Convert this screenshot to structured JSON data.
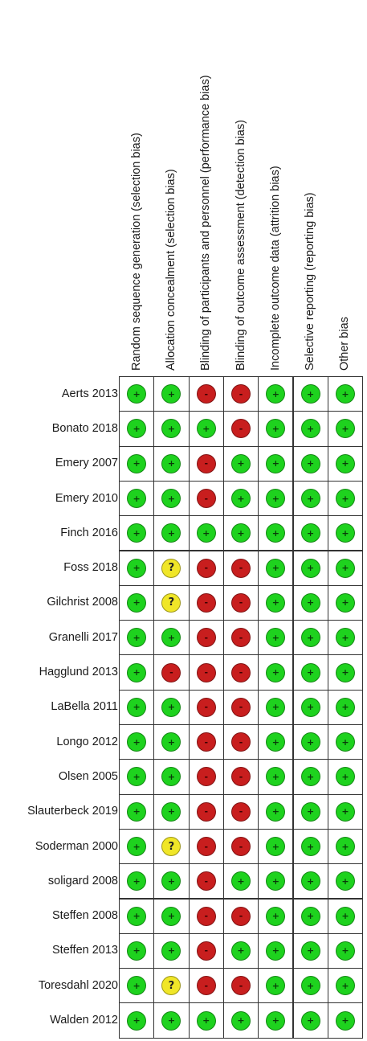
{
  "columns": [
    "Random sequence generation (selection bias)",
    "Allocation concealment (selection bias)",
    "Blinding of participants and personnel (performance bias)",
    "Blinding of outcome assessment (detection bias)",
    "Incomplete outcome data (attrition bias)",
    "Selective reporting (reporting bias)",
    "Other bias"
  ],
  "symbols": {
    "low": "+",
    "high": "-",
    "unclear": "?"
  },
  "colors": {
    "low": "#1ed21e",
    "high": "#c81e1e",
    "unclear": "#f0e628"
  },
  "studies": [
    {
      "name": "Aerts 2013",
      "ratings": [
        "low",
        "low",
        "high",
        "high",
        "low",
        "low",
        "low"
      ]
    },
    {
      "name": "Bonato 2018",
      "ratings": [
        "low",
        "low",
        "low",
        "high",
        "low",
        "low",
        "low"
      ]
    },
    {
      "name": "Emery 2007",
      "ratings": [
        "low",
        "low",
        "high",
        "low",
        "low",
        "low",
        "low"
      ]
    },
    {
      "name": "Emery 2010",
      "ratings": [
        "low",
        "low",
        "high",
        "low",
        "low",
        "low",
        "low"
      ]
    },
    {
      "name": "Finch 2016",
      "ratings": [
        "low",
        "low",
        "low",
        "low",
        "low",
        "low",
        "low"
      ]
    },
    {
      "name": "Foss 2018",
      "ratings": [
        "low",
        "unclear",
        "high",
        "high",
        "low",
        "low",
        "low"
      ]
    },
    {
      "name": "Gilchrist 2008",
      "ratings": [
        "low",
        "unclear",
        "high",
        "high",
        "low",
        "low",
        "low"
      ]
    },
    {
      "name": "Granelli 2017",
      "ratings": [
        "low",
        "low",
        "high",
        "high",
        "low",
        "low",
        "low"
      ]
    },
    {
      "name": "Hagglund 2013",
      "ratings": [
        "low",
        "high",
        "high",
        "high",
        "low",
        "low",
        "low"
      ]
    },
    {
      "name": "LaBella 2011",
      "ratings": [
        "low",
        "low",
        "high",
        "high",
        "low",
        "low",
        "low"
      ]
    },
    {
      "name": "Longo 2012",
      "ratings": [
        "low",
        "low",
        "high",
        "high",
        "low",
        "low",
        "low"
      ]
    },
    {
      "name": "Olsen 2005",
      "ratings": [
        "low",
        "low",
        "high",
        "high",
        "low",
        "low",
        "low"
      ]
    },
    {
      "name": "Slauterbeck 2019",
      "ratings": [
        "low",
        "low",
        "high",
        "high",
        "low",
        "low",
        "low"
      ]
    },
    {
      "name": "Soderman 2000",
      "ratings": [
        "low",
        "unclear",
        "high",
        "high",
        "low",
        "low",
        "low"
      ]
    },
    {
      "name": "soligard 2008",
      "ratings": [
        "low",
        "low",
        "high",
        "low",
        "low",
        "low",
        "low"
      ]
    },
    {
      "name": "Steffen 2008",
      "ratings": [
        "low",
        "low",
        "high",
        "high",
        "low",
        "low",
        "low"
      ]
    },
    {
      "name": "Steffen 2013",
      "ratings": [
        "low",
        "low",
        "high",
        "low",
        "low",
        "low",
        "low"
      ]
    },
    {
      "name": "Toresdahl 2020",
      "ratings": [
        "low",
        "unclear",
        "high",
        "high",
        "low",
        "low",
        "low"
      ]
    },
    {
      "name": "Walden 2012",
      "ratings": [
        "low",
        "low",
        "low",
        "low",
        "low",
        "low",
        "low"
      ]
    }
  ]
}
